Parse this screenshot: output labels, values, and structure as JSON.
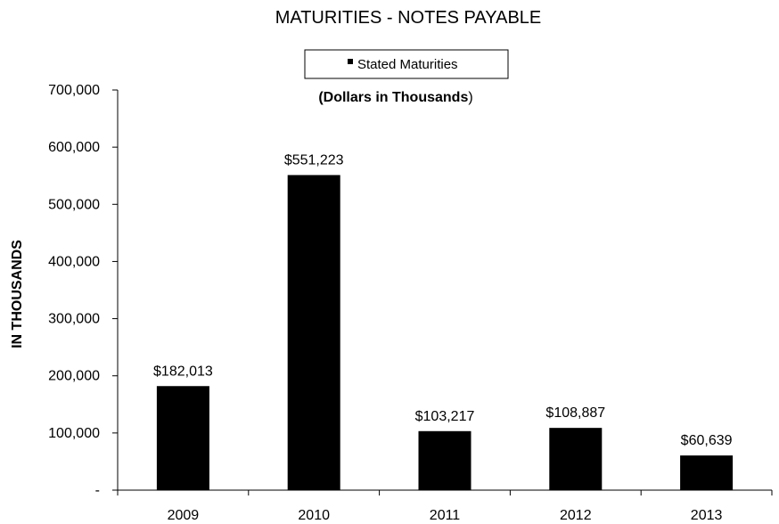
{
  "chart_data": {
    "type": "bar",
    "title": "MATURITIES - NOTES PAYABLE",
    "subtitle_bold": "(Dollars in Thousands",
    "subtitle_tail": ")",
    "ylabel": "IN THOUSANDS",
    "xlabel": "",
    "categories": [
      "2009",
      "2010",
      "2011",
      "2012",
      "2013"
    ],
    "series": [
      {
        "name": "Stated Maturities",
        "values": [
          182013,
          551223,
          103217,
          108887,
          60639
        ],
        "data_labels": [
          "$182,013",
          "$551,223",
          "$103,217",
          "$108,887",
          "$60,639"
        ],
        "color": "#000000"
      }
    ],
    "ylim": [
      0,
      700000
    ],
    "y_ticks": [
      0,
      100000,
      200000,
      300000,
      400000,
      500000,
      600000,
      700000
    ],
    "y_tick_labels": [
      "-",
      "100,000",
      "200,000",
      "300,000",
      "400,000",
      "500,000",
      "600,000",
      "700,000"
    ],
    "legend_position": "top-center",
    "grid": false
  }
}
